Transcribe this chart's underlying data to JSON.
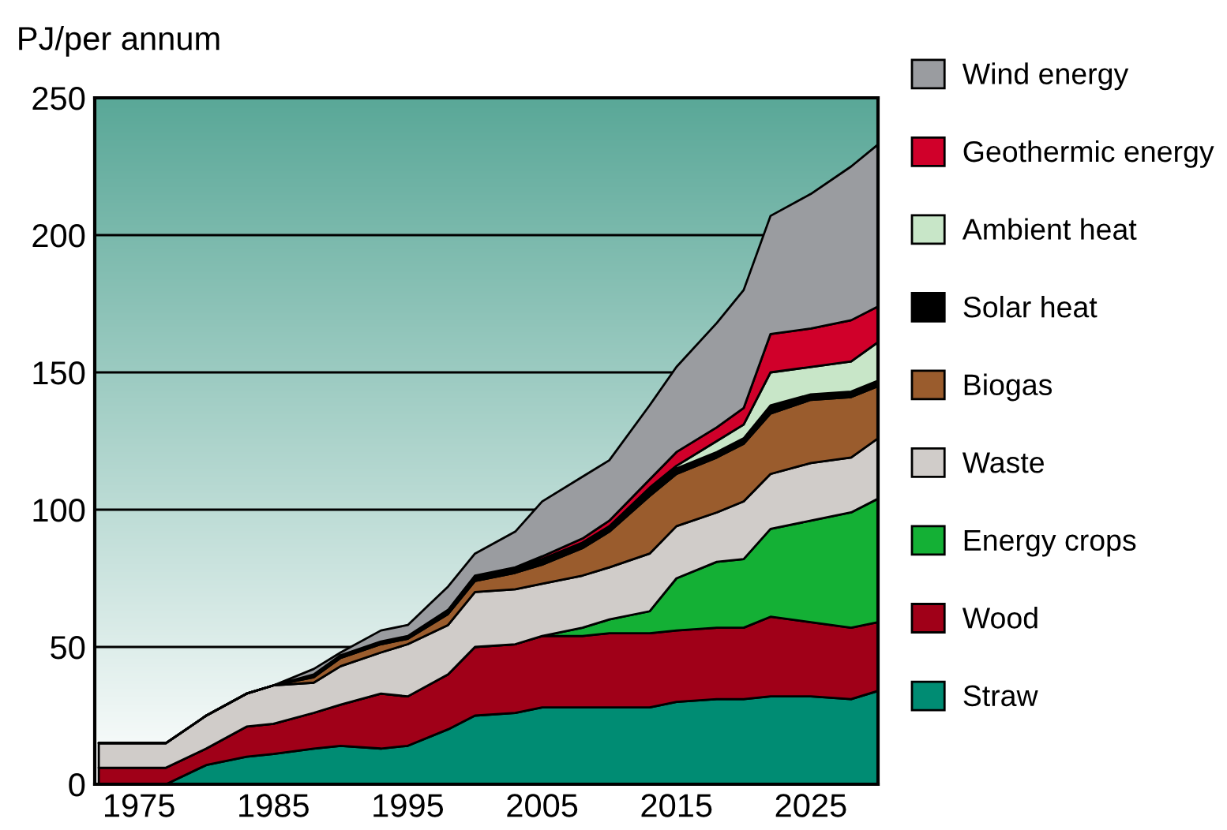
{
  "chart_data": {
    "type": "area",
    "stacked": true,
    "ylabel": "PJ/per annum",
    "x": [
      1972,
      1977,
      1980,
      1983,
      1985,
      1988,
      1990,
      1993,
      1995,
      1998,
      2000,
      2003,
      2005,
      2008,
      2010,
      2013,
      2015,
      2018,
      2020,
      2022,
      2025,
      2028,
      2030
    ],
    "xlim": [
      1971.7,
      2030
    ],
    "xticks": [
      1975,
      1985,
      1995,
      2005,
      2015,
      2025
    ],
    "ylim": [
      0,
      250
    ],
    "yticks": [
      0,
      50,
      100,
      150,
      200,
      250
    ],
    "grid": "y",
    "legend": "right",
    "series": [
      {
        "name": "Straw",
        "color": "#008c73",
        "values": [
          0,
          0,
          7,
          10,
          11,
          13,
          14,
          13,
          14,
          20,
          25,
          26,
          28,
          28,
          28,
          28,
          30,
          31,
          31,
          32,
          32,
          31,
          34
        ]
      },
      {
        "name": "Wood",
        "color": "#a00018",
        "values": [
          6,
          6,
          6,
          11,
          11,
          13,
          15,
          20,
          18,
          20,
          25,
          25,
          26,
          26,
          27,
          27,
          26,
          26,
          26,
          29,
          27,
          26,
          25
        ]
      },
      {
        "name": "Energy crops",
        "color": "#14b035",
        "values": [
          0,
          0,
          0,
          0,
          0,
          0,
          0,
          0,
          0,
          0,
          0,
          0,
          0,
          3,
          5,
          8,
          19,
          24,
          25,
          32,
          37,
          42,
          45
        ]
      },
      {
        "name": "Waste",
        "color": "#d0ccc9",
        "values": [
          9,
          9,
          12,
          12,
          14,
          11,
          14,
          15,
          19,
          18,
          20,
          20,
          19,
          19,
          19,
          21,
          19,
          18,
          21,
          20,
          21,
          20,
          22
        ]
      },
      {
        "name": "Biogas",
        "color": "#9a5c2d",
        "values": [
          0,
          0,
          0,
          0,
          0,
          2,
          3,
          3,
          2,
          4,
          4,
          6,
          7,
          10,
          13,
          21,
          19,
          20,
          21,
          22,
          23,
          22,
          19
        ]
      },
      {
        "name": "Solar heat",
        "color": "#000000",
        "values": [
          0,
          0,
          0,
          0,
          0,
          1,
          1,
          1,
          1,
          1.5,
          2,
          2,
          2,
          2,
          2,
          3,
          2,
          2,
          2,
          3,
          2,
          2,
          2
        ]
      },
      {
        "name": "Ambient heat",
        "color": "#c8e6c8",
        "values": [
          0,
          0,
          0,
          0,
          0,
          0,
          0,
          0,
          0,
          0,
          0,
          0,
          0,
          0,
          0,
          0,
          1,
          4,
          5,
          12,
          10,
          11,
          14
        ]
      },
      {
        "name": "Geothermic energy",
        "color": "#d0002a",
        "values": [
          0,
          0,
          0,
          0,
          0,
          0,
          0,
          0,
          0,
          0,
          0,
          0,
          1,
          1.5,
          2,
          3,
          5,
          5,
          6,
          14,
          14,
          15,
          13
        ]
      },
      {
        "name": "Wind energy",
        "color": "#9a9ca0",
        "values": [
          0,
          0,
          0,
          0,
          0,
          2,
          1,
          4,
          4,
          8.5,
          8,
          13,
          20,
          22.5,
          22,
          27,
          31,
          38,
          43,
          43,
          49,
          56,
          59
        ]
      }
    ]
  }
}
